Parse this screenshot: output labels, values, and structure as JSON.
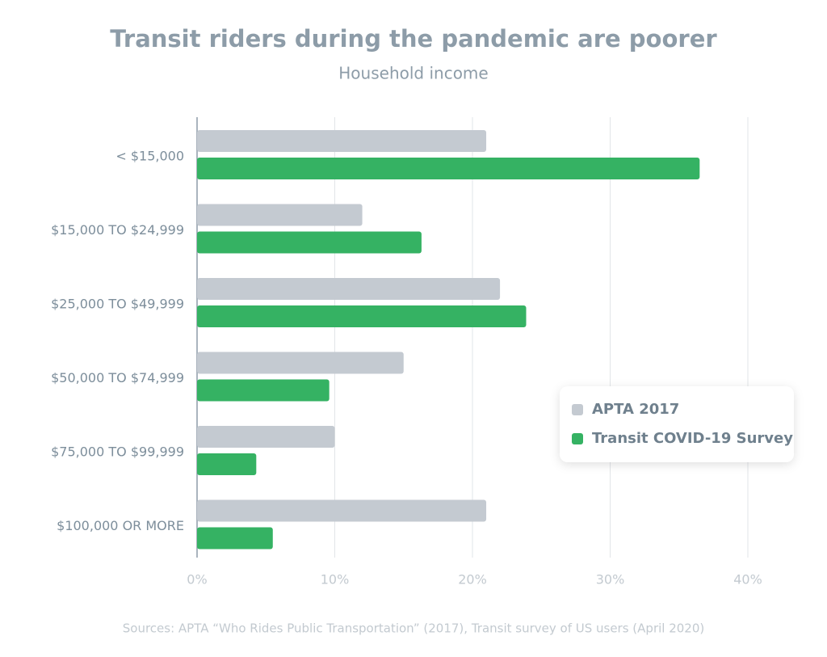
{
  "chart_data": {
    "type": "hbar",
    "title": "Transit riders during the pandemic are poorer",
    "subtitle": "Household income",
    "source": "Sources: APTA “Who Rides Public Transportation” (2017), Transit survey of US users (April 2020)",
    "categories": [
      "< $15,000",
      "$15,000 TO $24,999",
      "$25,000 TO $49,999",
      "$50,000 TO $74,999",
      "$75,000 TO $99,999",
      "$100,000 OR MORE"
    ],
    "series": [
      {
        "name": "APTA 2017",
        "color": "#c4cad1",
        "values": [
          21,
          12,
          22,
          15,
          10,
          21
        ]
      },
      {
        "name": "Transit COVID-19 Survey",
        "color": "#35b263",
        "values": [
          36.5,
          16.3,
          23.9,
          9.6,
          4.3,
          5.5
        ]
      }
    ],
    "xlim": [
      0,
      40
    ],
    "xticks": [
      {
        "value": 0,
        "label": "0%"
      },
      {
        "value": 10,
        "label": "10%"
      },
      {
        "value": 20,
        "label": "20%"
      },
      {
        "value": 30,
        "label": "30%"
      },
      {
        "value": 40,
        "label": "40%"
      }
    ],
    "grid": true,
    "legend": "right"
  }
}
